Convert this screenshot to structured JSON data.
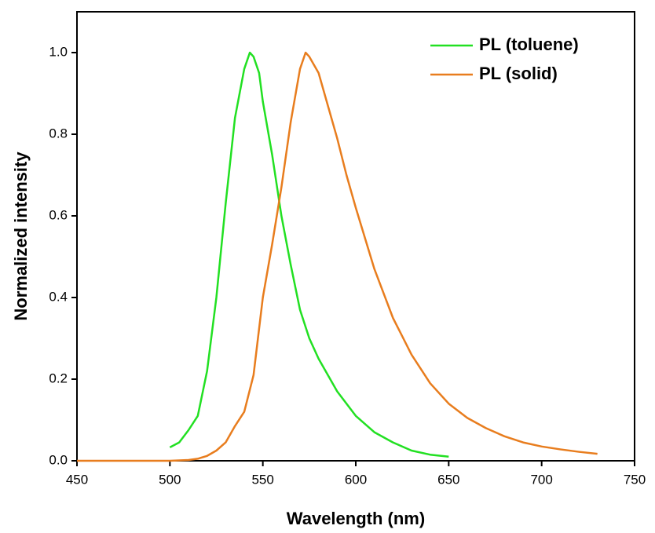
{
  "chart_data": {
    "type": "line",
    "x_label": "Wavelength (nm)",
    "y_label": "Normalized intensity",
    "xlim": [
      450,
      750
    ],
    "ylim": [
      0,
      1.1
    ],
    "xticks": [
      450,
      500,
      550,
      600,
      650,
      700,
      750
    ],
    "yticks": [
      {
        "value": 0,
        "label": "0.0"
      },
      0.2,
      0.4,
      0.6,
      0.8,
      {
        "value": 1,
        "label": "1.0"
      }
    ],
    "legend": "upper right",
    "series": [
      {
        "name": "PL (toluene)",
        "color": "#22e022",
        "x": [
          500,
          505,
          510,
          515,
          520,
          525,
          530,
          535,
          540,
          543,
          545,
          548,
          550,
          555,
          560,
          565,
          570,
          575,
          580,
          590,
          600,
          610,
          620,
          630,
          640,
          650
        ],
        "values": [
          0.033,
          0.045,
          0.075,
          0.11,
          0.22,
          0.4,
          0.63,
          0.84,
          0.96,
          1.0,
          0.99,
          0.95,
          0.88,
          0.75,
          0.6,
          0.48,
          0.37,
          0.3,
          0.25,
          0.17,
          0.11,
          0.07,
          0.045,
          0.025,
          0.015,
          0.01
        ]
      },
      {
        "name": "PL (solid)",
        "color": "#e87d1e",
        "x": [
          450,
          500,
          510,
          515,
          520,
          525,
          530,
          535,
          540,
          545,
          550,
          555,
          560,
          565,
          570,
          573,
          575,
          580,
          585,
          590,
          595,
          600,
          610,
          620,
          630,
          640,
          650,
          660,
          670,
          680,
          690,
          700,
          710,
          720,
          730
        ],
        "values": [
          0,
          0,
          0.002,
          0.005,
          0.012,
          0.025,
          0.045,
          0.085,
          0.12,
          0.21,
          0.4,
          0.53,
          0.67,
          0.83,
          0.96,
          1.0,
          0.99,
          0.95,
          0.87,
          0.79,
          0.7,
          0.62,
          0.47,
          0.35,
          0.26,
          0.19,
          0.14,
          0.105,
          0.08,
          0.06,
          0.045,
          0.035,
          0.028,
          0.022,
          0.017
        ]
      }
    ]
  }
}
